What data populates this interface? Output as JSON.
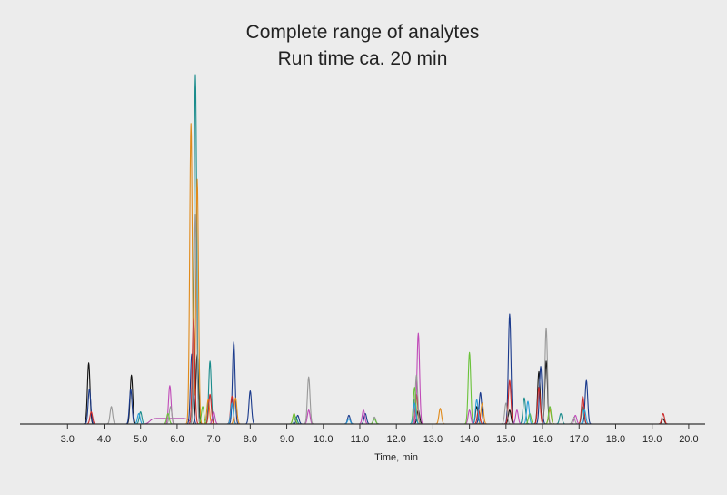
{
  "chart_data": {
    "type": "line",
    "title": "Complete range of analytes",
    "subtitle": "Run time ca. 20 min",
    "xlabel": "Time, min",
    "ylabel": "",
    "xlim": [
      1.7,
      20.45
    ],
    "ylim": [
      0,
      100
    ],
    "x_ticks": [
      "3.0",
      "4.0",
      "5.0",
      "6.0",
      "7.0",
      "8.0",
      "9.0",
      "10.0",
      "11.0",
      "12.0",
      "13.0",
      "14.0",
      "15.0",
      "16.0",
      "17.0",
      "18.0",
      "19.0",
      "20.0"
    ],
    "grid": false,
    "legend": "none",
    "colors": {
      "background": "#ececec",
      "axis": "#333333",
      "baseline_trace": "#b03aa8"
    },
    "series": [
      {
        "color": "#111111",
        "peaks": [
          [
            3.58,
            17.5
          ],
          [
            4.75,
            14.0
          ],
          [
            6.55,
            20.0
          ],
          [
            12.6,
            4.0
          ],
          [
            14.2,
            5.0
          ],
          [
            15.1,
            4.0
          ],
          [
            15.9,
            15.0
          ],
          [
            16.1,
            18.0
          ],
          [
            19.3,
            1.5
          ]
        ]
      },
      {
        "color": "#1a3a8c",
        "peaks": [
          [
            3.6,
            10.0
          ],
          [
            4.73,
            10.0
          ],
          [
            6.4,
            20.0
          ],
          [
            7.55,
            23.5
          ],
          [
            8.0,
            9.5
          ],
          [
            9.3,
            2.5
          ],
          [
            10.7,
            2.5
          ],
          [
            11.15,
            3.0
          ],
          [
            14.3,
            9.0
          ],
          [
            15.1,
            31.5
          ],
          [
            15.95,
            16.5
          ],
          [
            17.2,
            12.5
          ]
        ]
      },
      {
        "color": "#1a8c8c",
        "peaks": [
          [
            5.0,
            3.5
          ],
          [
            6.5,
            100.0
          ],
          [
            6.9,
            18.0
          ],
          [
            9.25,
            2.0
          ],
          [
            11.4,
            1.5
          ],
          [
            12.5,
            7.0
          ],
          [
            15.5,
            7.5
          ],
          [
            16.5,
            3.0
          ],
          [
            17.1,
            5.0
          ]
        ]
      },
      {
        "color": "#e08a1a",
        "peaks": [
          [
            6.38,
            86.0
          ],
          [
            6.55,
            70.0
          ],
          [
            6.85,
            7.0
          ],
          [
            7.6,
            7.5
          ],
          [
            9.2,
            3.0
          ],
          [
            13.2,
            4.5
          ],
          [
            14.35,
            6.0
          ],
          [
            16.2,
            4.0
          ]
        ]
      },
      {
        "color": "#cc2a2a",
        "peaks": [
          [
            3.65,
            3.5
          ],
          [
            6.45,
            30.0
          ],
          [
            6.9,
            8.5
          ],
          [
            7.5,
            8.0
          ],
          [
            12.55,
            8.5
          ],
          [
            14.25,
            4.0
          ],
          [
            15.1,
            12.5
          ],
          [
            15.9,
            10.5
          ],
          [
            17.1,
            8.0
          ],
          [
            19.3,
            3.0
          ]
        ]
      },
      {
        "color": "#c04ab8",
        "peaks": [
          [
            5.8,
            11.0
          ],
          [
            7.0,
            3.5
          ],
          [
            9.6,
            4.0
          ],
          [
            11.1,
            4.0
          ],
          [
            12.6,
            26.0
          ],
          [
            14.0,
            4.0
          ],
          [
            15.3,
            4.0
          ],
          [
            16.9,
            2.5
          ]
        ]
      },
      {
        "color": "#999999",
        "peaks": [
          [
            4.2,
            5.0
          ],
          [
            5.82,
            5.0
          ],
          [
            6.5,
            60.0
          ],
          [
            9.6,
            13.5
          ],
          [
            11.4,
            2.0
          ],
          [
            12.55,
            14.0
          ],
          [
            15.0,
            6.0
          ],
          [
            16.1,
            27.5
          ],
          [
            16.85,
            2.0
          ]
        ]
      },
      {
        "color": "#6ac23a",
        "peaks": [
          [
            5.75,
            3.0
          ],
          [
            6.7,
            5.0
          ],
          [
            9.2,
            3.0
          ],
          [
            11.4,
            1.5
          ],
          [
            12.5,
            10.5
          ],
          [
            14.0,
            20.5
          ],
          [
            15.65,
            3.0
          ],
          [
            16.2,
            5.0
          ]
        ]
      },
      {
        "color": "#2a9fd8",
        "peaks": [
          [
            4.95,
            3.0
          ],
          [
            7.5,
            6.0
          ],
          [
            10.7,
            1.5
          ],
          [
            12.5,
            6.0
          ],
          [
            14.2,
            7.0
          ],
          [
            15.6,
            6.5
          ],
          [
            17.15,
            4.0
          ]
        ]
      }
    ]
  }
}
